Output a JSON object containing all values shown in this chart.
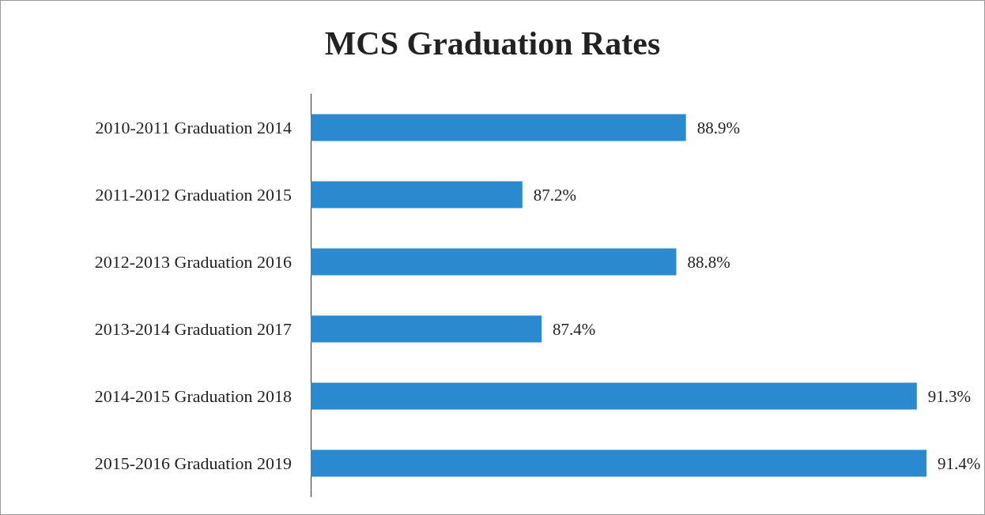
{
  "chart_data": {
    "type": "bar",
    "orientation": "horizontal",
    "title": "MCS Graduation Rates",
    "categories": [
      "2010-2011 Graduation 2014",
      "2011-2012 Graduation 2015",
      "2012-2013 Graduation 2016",
      "2013-2014 Graduation 2017",
      "2014-2015 Graduation 2018",
      "2015-2016 Graduation 2019"
    ],
    "values": [
      88.9,
      87.2,
      88.8,
      87.4,
      91.3,
      91.4
    ],
    "value_labels": [
      "88.9%",
      "87.2%",
      "88.8%",
      "87.4%",
      "91.3%",
      "91.4%"
    ],
    "color": "#2b89d0",
    "xlim": [
      85,
      92
    ],
    "tick_labels": "y"
  }
}
